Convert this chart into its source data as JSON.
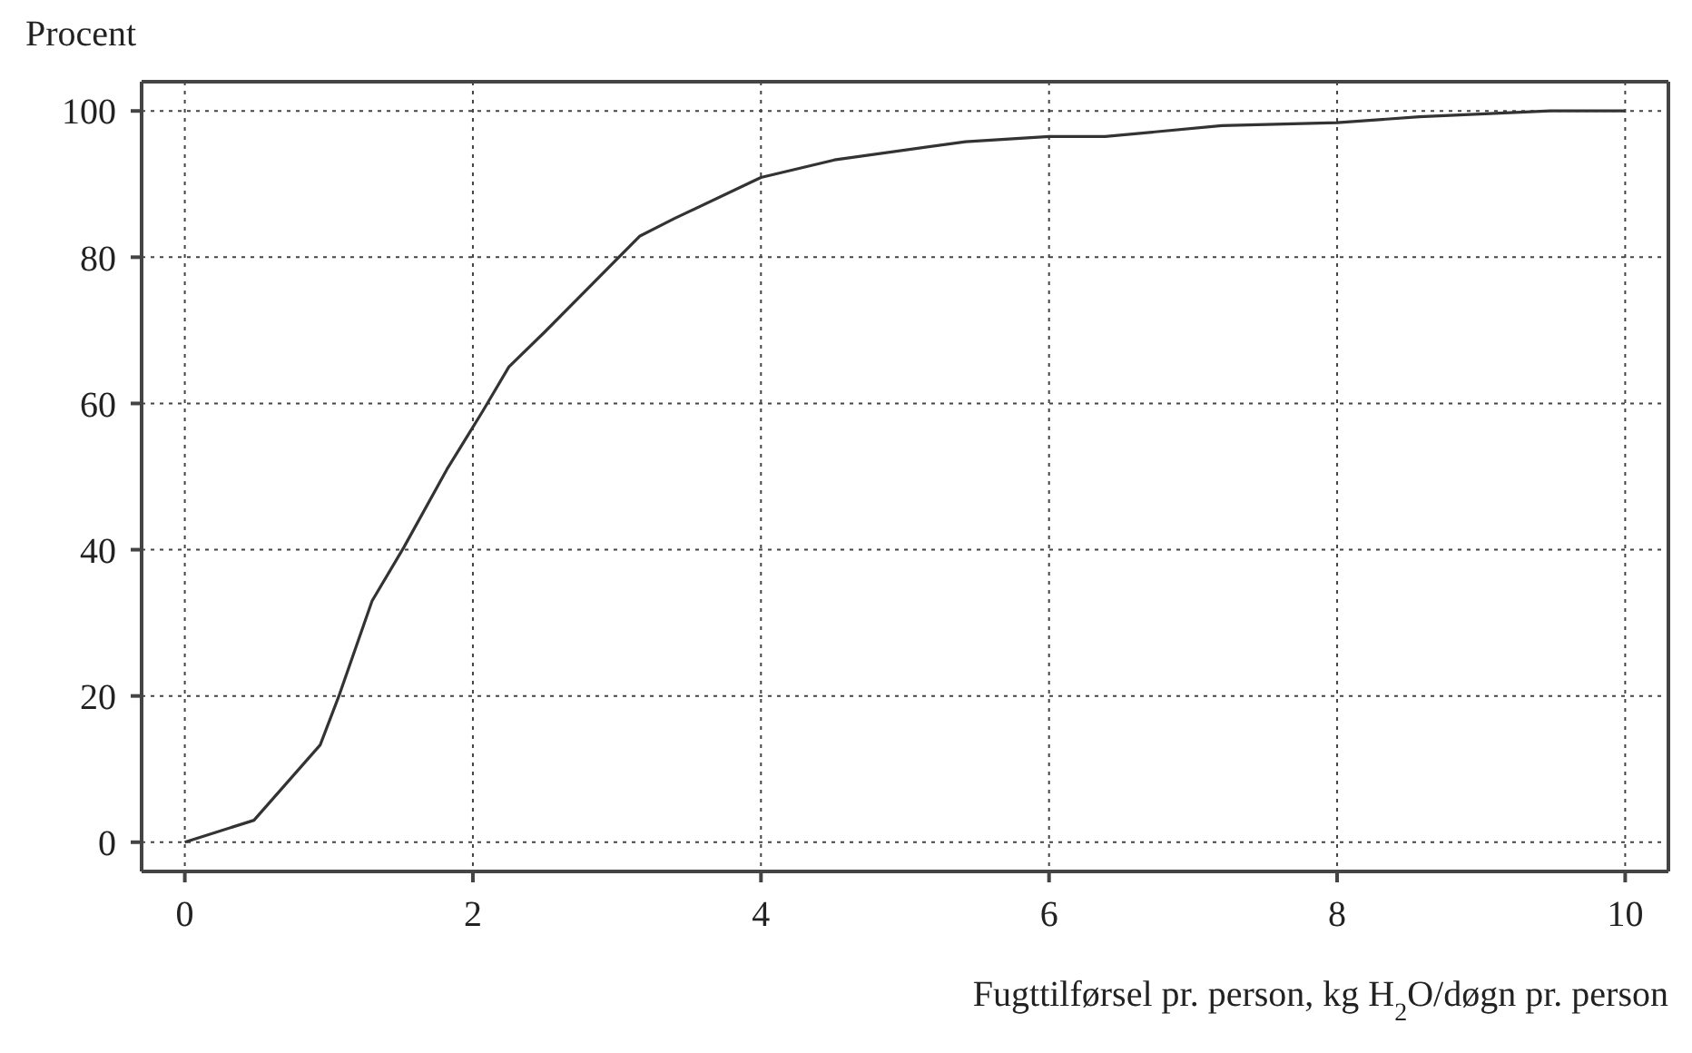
{
  "chart_data": {
    "type": "line",
    "ylabel": "Procent",
    "xlabel": "Fugttilførsel pr. person, kg H$_{2}$O/døgn pr. person",
    "series": [
      {
        "color": "#333333",
        "x": [
          0,
          0.48,
          0.94,
          1.07,
          1.3,
          1.52,
          1.82,
          2.07,
          2.25,
          2.5,
          3.16,
          3.4,
          4,
          4.51,
          5.42,
          6,
          6.39,
          7.2,
          8,
          8.57,
          9.48,
          10
        ],
        "values": [
          0,
          3,
          13.3,
          20,
          33,
          40.3,
          51,
          59,
          65,
          69.8,
          82.9,
          85.3,
          90.9,
          93.3,
          95.8,
          96.5,
          96.5,
          98,
          98.4,
          99.2,
          100,
          100
        ]
      }
    ],
    "xlim": [
      -0.3,
      10.3
    ],
    "xticks": [
      0,
      2,
      4,
      6,
      8,
      10
    ],
    "ylim": [
      -4,
      104
    ],
    "yticks": [
      0,
      20,
      40,
      60,
      80,
      100
    ],
    "grid": true,
    "marker": "none",
    "line_style": "solid"
  }
}
